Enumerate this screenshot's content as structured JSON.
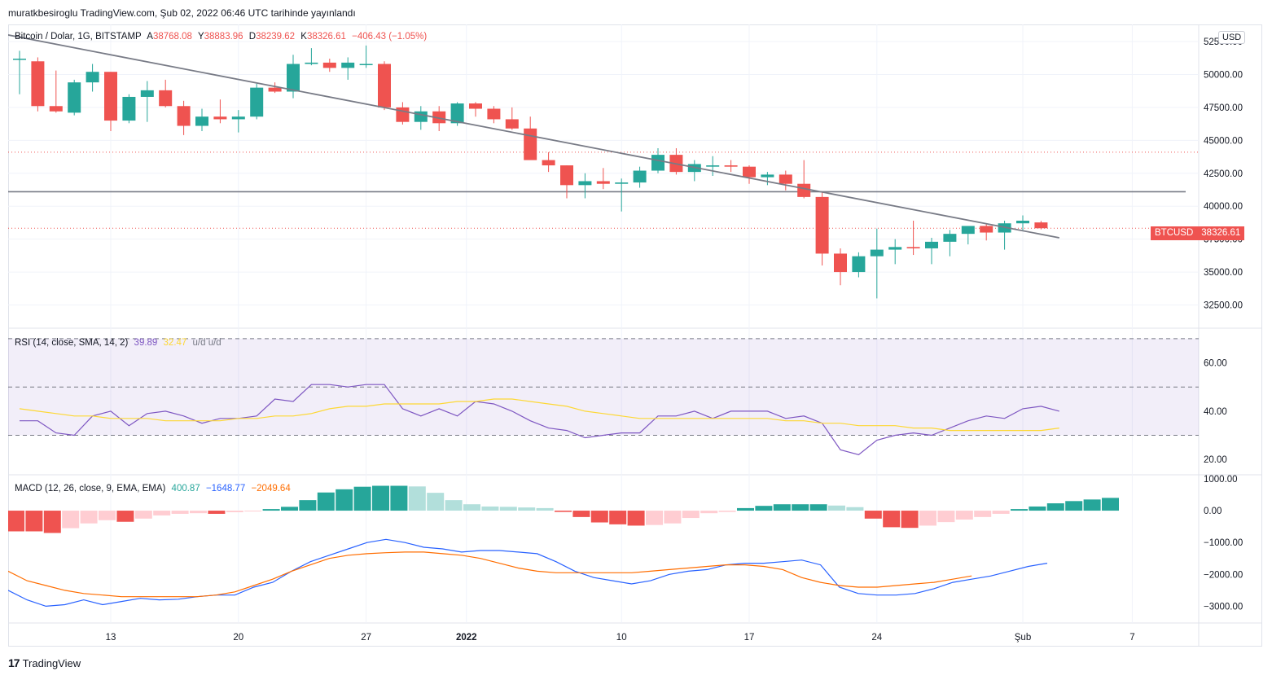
{
  "header": {
    "publisher_line": "muratkbesiroglu TradingView.com, Şub 02, 2022 06:46 UTC tarihinde yayınlandı"
  },
  "footer": {
    "logo_mark": "17",
    "brand": "TradingView"
  },
  "price_pane": {
    "symbol": "Bitcoin / Dolar, 1G, BITSTAMP",
    "open_label": "A",
    "open": "38768.08",
    "high_label": "Y",
    "high": "38883.96",
    "low_label": "D",
    "low": "38239.62",
    "close_label": "K",
    "close": "38326.61",
    "change": "−406.43 (−1.05%)",
    "currency_badge": "USD",
    "tag_symbol": "BTCUSD",
    "tag_price": "38326.61"
  },
  "rsi_pane": {
    "title": "RSI (14, close, SMA, 14, 2)",
    "value1": "39.89",
    "value2": "32.47",
    "extra": "u/d  u/d"
  },
  "macd_pane": {
    "title": "MACD (12, 26, close, 9, EMA, EMA)",
    "hist": "400.87",
    "macd": "−1648.77",
    "signal": "−2049.64"
  },
  "colors": {
    "up": "#26a69a",
    "down": "#ef5350",
    "up_light": "#b2dfdb",
    "down_light": "#ffcdd2",
    "rsi": "#7e57c2",
    "rsi_ma": "#fdd835",
    "macd": "#2962ff",
    "signal": "#ff6d00",
    "trendline": "#787b86"
  },
  "chart_data": [
    {
      "type": "candlestick",
      "title": "Bitcoin / Dolar, 1G, BITSTAMP",
      "x_ticks": [
        "13",
        "20",
        "27",
        "2022",
        "10",
        "17",
        "24",
        "Şub",
        "7"
      ],
      "y_ticks": [
        "52500.00",
        "50000.00",
        "47500.00",
        "45000.00",
        "42500.00",
        "40000.00",
        "37500.00",
        "35000.00",
        "32500.00"
      ],
      "ylim": [
        30800,
        53800
      ],
      "horizontal_line": 41100,
      "dotted_levels": [
        44100,
        38326.61
      ],
      "trendline": [
        [
          -4,
          53900
        ],
        [
          57,
          37600
        ]
      ],
      "candles": [
        {
          "o": 51200,
          "h": 51800,
          "l": 48500,
          "c": 51200
        },
        {
          "o": 51000,
          "h": 51300,
          "l": 47200,
          "c": 47600
        },
        {
          "o": 47600,
          "h": 50300,
          "l": 47100,
          "c": 47200
        },
        {
          "o": 47100,
          "h": 49600,
          "l": 46900,
          "c": 49400
        },
        {
          "o": 49400,
          "h": 50800,
          "l": 48700,
          "c": 50200
        },
        {
          "o": 50200,
          "h": 50200,
          "l": 45700,
          "c": 46500
        },
        {
          "o": 46500,
          "h": 48500,
          "l": 46300,
          "c": 48300
        },
        {
          "o": 48300,
          "h": 49500,
          "l": 46400,
          "c": 48800
        },
        {
          "o": 48800,
          "h": 49600,
          "l": 47500,
          "c": 47600
        },
        {
          "o": 47600,
          "h": 48000,
          "l": 45400,
          "c": 46100
        },
        {
          "o": 46100,
          "h": 47400,
          "l": 45700,
          "c": 46800
        },
        {
          "o": 46800,
          "h": 48100,
          "l": 46300,
          "c": 46600
        },
        {
          "o": 46600,
          "h": 47300,
          "l": 45600,
          "c": 46800
        },
        {
          "o": 46800,
          "h": 49300,
          "l": 46600,
          "c": 49000
        },
        {
          "o": 49000,
          "h": 49400,
          "l": 48600,
          "c": 48700
        },
        {
          "o": 48700,
          "h": 51500,
          "l": 48200,
          "c": 50800
        },
        {
          "o": 50800,
          "h": 52000,
          "l": 50700,
          "c": 50900
        },
        {
          "o": 50900,
          "h": 51200,
          "l": 50200,
          "c": 50500
        },
        {
          "o": 50500,
          "h": 51300,
          "l": 49600,
          "c": 50900
        },
        {
          "o": 50800,
          "h": 52200,
          "l": 50500,
          "c": 50800
        },
        {
          "o": 50800,
          "h": 51000,
          "l": 47300,
          "c": 47500
        },
        {
          "o": 47500,
          "h": 47900,
          "l": 46200,
          "c": 46400
        },
        {
          "o": 46400,
          "h": 47600,
          "l": 45800,
          "c": 47200
        },
        {
          "o": 47200,
          "h": 47600,
          "l": 45700,
          "c": 46300
        },
        {
          "o": 46300,
          "h": 47900,
          "l": 46100,
          "c": 47800
        },
        {
          "o": 47800,
          "h": 47900,
          "l": 46800,
          "c": 47400
        },
        {
          "o": 47400,
          "h": 47600,
          "l": 46300,
          "c": 46600
        },
        {
          "o": 46600,
          "h": 47500,
          "l": 45800,
          "c": 45900
        },
        {
          "o": 45900,
          "h": 46800,
          "l": 43700,
          "c": 43500
        },
        {
          "o": 43500,
          "h": 44100,
          "l": 42600,
          "c": 43100
        },
        {
          "o": 43100,
          "h": 43100,
          "l": 40600,
          "c": 41600
        },
        {
          "o": 41600,
          "h": 42500,
          "l": 40600,
          "c": 41900
        },
        {
          "o": 41900,
          "h": 42900,
          "l": 41300,
          "c": 41700
        },
        {
          "o": 41700,
          "h": 42100,
          "l": 39600,
          "c": 41800
        },
        {
          "o": 41800,
          "h": 43000,
          "l": 41400,
          "c": 42700
        },
        {
          "o": 42700,
          "h": 44400,
          "l": 42500,
          "c": 43900
        },
        {
          "o": 43900,
          "h": 44400,
          "l": 42400,
          "c": 42600
        },
        {
          "o": 42600,
          "h": 43500,
          "l": 41900,
          "c": 43200
        },
        {
          "o": 43000,
          "h": 43800,
          "l": 42300,
          "c": 43100
        },
        {
          "o": 43100,
          "h": 43500,
          "l": 42600,
          "c": 43000
        },
        {
          "o": 43000,
          "h": 43100,
          "l": 41700,
          "c": 42200
        },
        {
          "o": 42200,
          "h": 42600,
          "l": 41600,
          "c": 42400
        },
        {
          "o": 42400,
          "h": 42700,
          "l": 41200,
          "c": 41700
        },
        {
          "o": 41700,
          "h": 43500,
          "l": 40600,
          "c": 40700
        },
        {
          "o": 40700,
          "h": 41100,
          "l": 35500,
          "c": 36400
        },
        {
          "o": 36400,
          "h": 36800,
          "l": 34000,
          "c": 35000
        },
        {
          "o": 35000,
          "h": 36500,
          "l": 34600,
          "c": 36200
        },
        {
          "o": 36200,
          "h": 38300,
          "l": 33000,
          "c": 36700
        },
        {
          "o": 36700,
          "h": 37500,
          "l": 35600,
          "c": 36900
        },
        {
          "o": 36900,
          "h": 38900,
          "l": 36300,
          "c": 36800
        },
        {
          "o": 36800,
          "h": 37600,
          "l": 35600,
          "c": 37300
        },
        {
          "o": 37300,
          "h": 38200,
          "l": 36200,
          "c": 37900
        },
        {
          "o": 37900,
          "h": 38400,
          "l": 37100,
          "c": 38500
        },
        {
          "o": 38500,
          "h": 38700,
          "l": 37400,
          "c": 38000
        },
        {
          "o": 38000,
          "h": 38900,
          "l": 36700,
          "c": 38700
        },
        {
          "o": 38700,
          "h": 39300,
          "l": 38200,
          "c": 38900
        },
        {
          "o": 38768.08,
          "h": 38883.96,
          "l": 38239.62,
          "c": 38326.61
        }
      ]
    },
    {
      "type": "line",
      "title": "RSI (14, close, SMA, 14, 2)",
      "y_ticks": [
        "60.00",
        "40.00",
        "20.00"
      ],
      "ylim": [
        14,
        74
      ],
      "bands": [
        70,
        50,
        30
      ],
      "series": [
        {
          "values": [
            36,
            36,
            31,
            30,
            38,
            40,
            34,
            39,
            40,
            38,
            35,
            37,
            37,
            38,
            45,
            44,
            51,
            51,
            50,
            51,
            51,
            41,
            38,
            41,
            38,
            44,
            43,
            40,
            36,
            33,
            32,
            29,
            30,
            31,
            31,
            38,
            38,
            40,
            37,
            40,
            40,
            40,
            37,
            38,
            35,
            24,
            22,
            28,
            30,
            31,
            30,
            33,
            36,
            38,
            37,
            41,
            42,
            40
          ]
        },
        {
          "values": [
            41,
            40,
            39,
            38,
            38,
            37,
            37,
            37,
            36,
            36,
            36,
            36,
            37,
            37,
            38,
            38,
            39,
            41,
            42,
            42,
            43,
            43,
            43,
            43,
            44,
            44,
            45,
            45,
            44,
            43,
            42,
            40,
            39,
            38,
            37,
            37,
            37,
            37,
            37,
            37,
            37,
            37,
            36,
            36,
            35,
            35,
            34,
            34,
            34,
            33,
            33,
            32,
            32,
            32,
            32,
            32,
            32,
            33
          ]
        }
      ]
    },
    {
      "type": "bar",
      "title": "MACD (12, 26, close, 9, EMA, EMA)",
      "y_ticks": [
        "1000.00",
        "0.00",
        "−1000.00",
        "−2000.00",
        "−3000.00"
      ],
      "ylim": [
        -3500,
        1100
      ],
      "histogram": [
        -650,
        -650,
        -700,
        -550,
        -400,
        -300,
        -350,
        -250,
        -150,
        -100,
        -80,
        -100,
        -50,
        -10,
        50,
        120,
        330,
        570,
        670,
        750,
        780,
        780,
        760,
        560,
        330,
        200,
        130,
        120,
        100,
        80,
        -40,
        -200,
        -370,
        -430,
        -470,
        -450,
        -400,
        -230,
        -80,
        -40,
        80,
        150,
        200,
        200,
        200,
        160,
        110,
        -250,
        -520,
        -540,
        -470,
        -360,
        -280,
        -200,
        -100,
        50,
        130,
        230,
        300,
        350,
        400.87
      ],
      "series": [
        {
          "values": [
            -2500,
            -2800,
            -3000,
            -2950,
            -2800,
            -2950,
            -2850,
            -2750,
            -2800,
            -2780,
            -2700,
            -2650,
            -2650,
            -2400,
            -2250,
            -1900,
            -1600,
            -1400,
            -1200,
            -1000,
            -900,
            -1000,
            -1150,
            -1200,
            -1300,
            -1250,
            -1250,
            -1300,
            -1350,
            -1600,
            -1900,
            -2100,
            -2200,
            -2300,
            -2200,
            -2000,
            -1900,
            -1850,
            -1700,
            -1650,
            -1650,
            -1600,
            -1550,
            -1700,
            -2400,
            -2600,
            -2650,
            -2650,
            -2600,
            -2450,
            -2250,
            -2150,
            -2050,
            -1900,
            -1750,
            -1648.77
          ]
        },
        {
          "values": [
            -1900,
            -2200,
            -2350,
            -2500,
            -2600,
            -2650,
            -2700,
            -2700,
            -2700,
            -2700,
            -2700,
            -2650,
            -2550,
            -2350,
            -2150,
            -1900,
            -1700,
            -1500,
            -1400,
            -1350,
            -1320,
            -1300,
            -1300,
            -1350,
            -1400,
            -1500,
            -1650,
            -1800,
            -1900,
            -1950,
            -1950,
            -1950,
            -1950,
            -1950,
            -1900,
            -1850,
            -1800,
            -1750,
            -1700,
            -1700,
            -1750,
            -1850,
            -2100,
            -2250,
            -2350,
            -2400,
            -2400,
            -2350,
            -2300,
            -2250,
            -2150,
            -2049.64
          ]
        }
      ]
    }
  ]
}
